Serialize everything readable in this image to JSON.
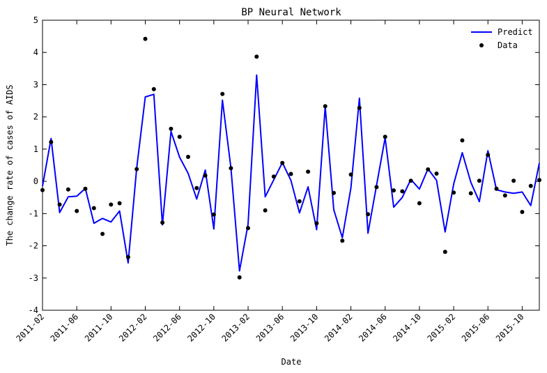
{
  "chart_data": {
    "type": "line",
    "title": "BP Neural Network",
    "xlabel": "Date",
    "ylabel": "The change rate of cases of AIDS",
    "ylim": [
      -4,
      5
    ],
    "yticks": [
      -4,
      -3,
      -2,
      -1,
      0,
      1,
      2,
      3,
      4,
      5
    ],
    "x_range": [
      "2011-02",
      "2015-12"
    ],
    "xticks": [
      "2011-02",
      "2011-06",
      "2011-10",
      "2012-02",
      "2012-06",
      "2012-10",
      "2013-02",
      "2013-06",
      "2013-10",
      "2014-02",
      "2014-06",
      "2014-10",
      "2015-02",
      "2015-06",
      "2015-10"
    ],
    "legend_position": "top-right",
    "grid": false,
    "x": [
      "2011-02",
      "2011-03",
      "2011-04",
      "2011-05",
      "2011-06",
      "2011-07",
      "2011-08",
      "2011-09",
      "2011-10",
      "2011-11",
      "2011-12",
      "2012-01",
      "2012-02",
      "2012-03",
      "2012-04",
      "2012-05",
      "2012-06",
      "2012-07",
      "2012-08",
      "2012-09",
      "2012-10",
      "2012-11",
      "2012-12",
      "2013-01",
      "2013-02",
      "2013-03",
      "2013-04",
      "2013-05",
      "2013-06",
      "2013-07",
      "2013-08",
      "2013-09",
      "2013-10",
      "2013-11",
      "2013-12",
      "2014-01",
      "2014-02",
      "2014-03",
      "2014-04",
      "2014-05",
      "2014-06",
      "2014-07",
      "2014-08",
      "2014-09",
      "2014-10",
      "2014-11",
      "2014-12",
      "2015-01",
      "2015-02",
      "2015-03",
      "2015-04",
      "2015-05",
      "2015-06",
      "2015-07",
      "2015-08",
      "2015-09",
      "2015-10",
      "2015-11",
      "2015-12"
    ],
    "series": [
      {
        "name": "Predict",
        "style": "line",
        "color": "#0000ff",
        "values": [
          -0.15,
          1.33,
          -0.97,
          -0.48,
          -0.46,
          -0.22,
          -1.3,
          -1.15,
          -1.26,
          -0.92,
          -2.53,
          0.42,
          2.62,
          2.7,
          -1.35,
          1.55,
          0.75,
          0.25,
          -0.55,
          0.35,
          -1.48,
          2.52,
          0.42,
          -2.78,
          -1.33,
          3.3,
          -0.48,
          0.05,
          0.58,
          0.03,
          -0.98,
          -0.17,
          -1.5,
          2.32,
          -0.88,
          -1.75,
          -0.2,
          2.58,
          -1.61,
          -0.12,
          1.35,
          -0.8,
          -0.5,
          0.06,
          -0.24,
          0.39,
          0.03,
          -1.57,
          -0.08,
          0.89,
          -0.03,
          -0.63,
          0.95,
          -0.26,
          -0.33,
          -0.37,
          -0.33,
          -0.75,
          0.57
        ]
      },
      {
        "name": "Data",
        "style": "scatter",
        "color": "#000000",
        "values": [
          -0.27,
          1.22,
          -0.72,
          -0.25,
          -0.92,
          -0.23,
          -0.83,
          -1.63,
          -0.72,
          -0.68,
          -2.35,
          0.38,
          4.42,
          2.86,
          -1.28,
          1.63,
          1.38,
          0.76,
          -0.21,
          0.18,
          -1.03,
          2.71,
          0.41,
          -2.98,
          -1.45,
          3.87,
          -0.9,
          0.15,
          0.57,
          0.23,
          -0.62,
          0.3,
          -1.3,
          2.33,
          -0.36,
          -1.84,
          0.21,
          2.28,
          -1.02,
          -0.18,
          1.38,
          -0.28,
          -0.31,
          0.02,
          -0.68,
          0.37,
          0.24,
          -2.19,
          -0.35,
          1.27,
          -0.37,
          0.02,
          0.82,
          -0.23,
          -0.44,
          0.02,
          -0.95,
          -0.14,
          0.04
        ]
      }
    ]
  }
}
